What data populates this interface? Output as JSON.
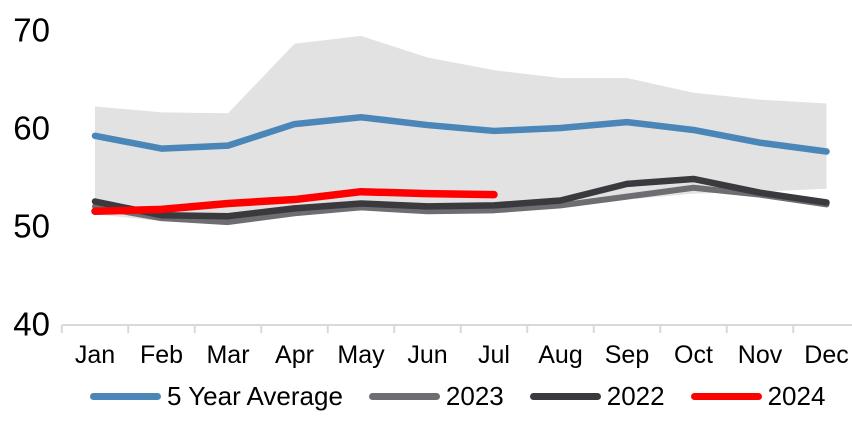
{
  "chart_data": {
    "type": "line",
    "title": "",
    "categories": [
      "Jan",
      "Feb",
      "Mar",
      "Apr",
      "May",
      "Jun",
      "Jul",
      "Aug",
      "Sep",
      "Oct",
      "Nov",
      "Dec"
    ],
    "y_axis": {
      "min": 40,
      "max": 70,
      "ticks": [
        40,
        50,
        60,
        70
      ]
    },
    "grid": false,
    "legend_position": "bottom",
    "axis_color": "#D9D9D9",
    "text_color": "#000000",
    "band": {
      "name": "5-year-range",
      "color": "#E2E2E2",
      "upper": [
        62.2,
        61.6,
        61.5,
        68.6,
        69.4,
        67.2,
        65.9,
        65.1,
        65.1,
        63.6,
        62.9,
        62.5
      ],
      "lower": [
        51.2,
        50.5,
        50.2,
        51.1,
        51.7,
        51.5,
        51.5,
        51.9,
        52.7,
        53.3,
        53.5,
        53.8
      ]
    },
    "series": [
      {
        "name": "5 Year Average",
        "color": "#4A86B8",
        "stroke_width": 6.5,
        "values": [
          59.2,
          57.9,
          58.2,
          60.4,
          61.1,
          60.3,
          59.7,
          60.0,
          60.6,
          59.8,
          58.5,
          57.6
        ]
      },
      {
        "name": "2023",
        "color": "#6E6E72",
        "stroke_width": 6,
        "values": [
          52.0,
          50.8,
          50.4,
          51.3,
          51.9,
          51.5,
          51.6,
          52.1,
          53.0,
          53.9,
          53.2,
          52.2
        ]
      },
      {
        "name": "2022",
        "color": "#3A3A3E",
        "stroke_width": 6.5,
        "values": [
          52.5,
          51.1,
          51.0,
          51.8,
          52.3,
          52.0,
          52.1,
          52.6,
          54.3,
          54.8,
          53.4,
          52.4
        ]
      },
      {
        "name": "2024",
        "color": "#FF0000",
        "stroke_width": 7.5,
        "values": [
          51.5,
          51.7,
          52.3,
          52.7,
          53.5,
          53.3,
          53.2
        ]
      }
    ]
  }
}
